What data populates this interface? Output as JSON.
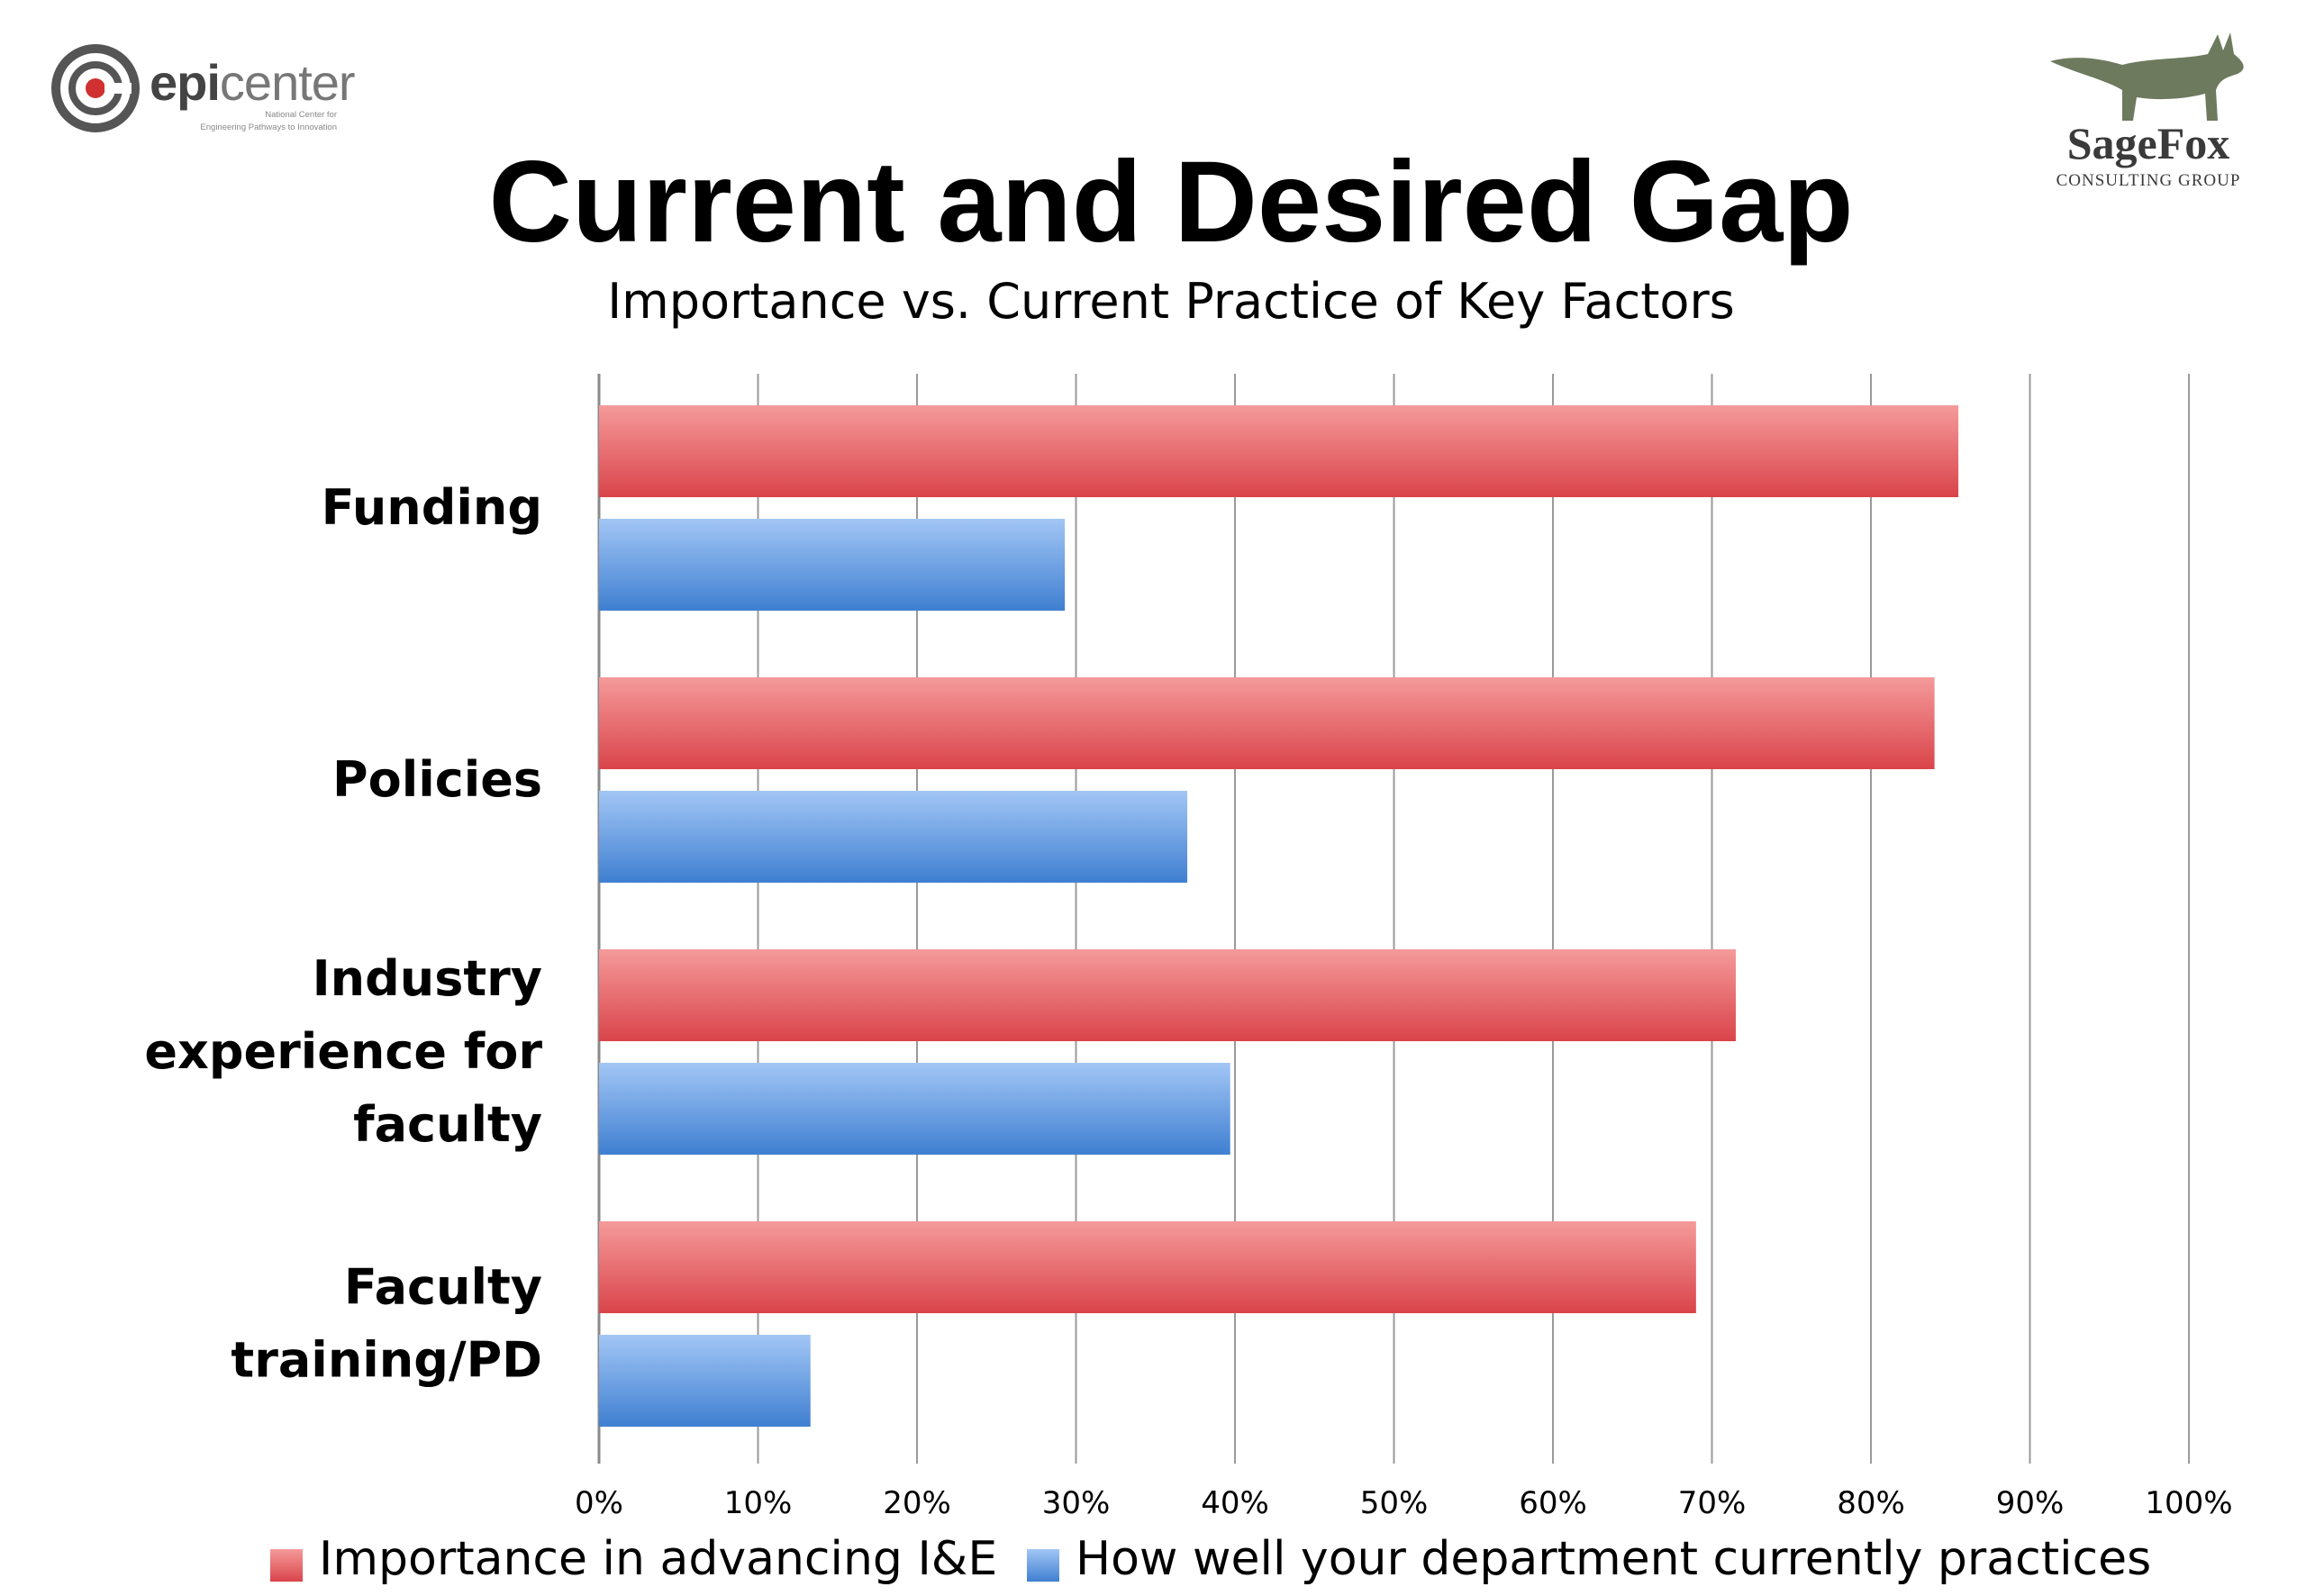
{
  "logos": {
    "left": {
      "brand_bold": "epi",
      "brand_thin": "center",
      "tagline_1": "National Center for",
      "tagline_2": "Engineering Pathways to Innovation",
      "icon": "epicenter-target-icon"
    },
    "right": {
      "name": "SageFox",
      "sub": "CONSULTING GROUP",
      "icon": "fox-icon"
    }
  },
  "title": "Current and Desired Gap",
  "subtitle": "Importance vs. Current Practice of Key Factors",
  "chart_data": {
    "type": "bar",
    "orientation": "horizontal",
    "categories": [
      "Funding",
      "Policies",
      "Industry experience for faculty",
      "Faculty training/PD"
    ],
    "category_lines": [
      [
        "Funding"
      ],
      [
        "Policies"
      ],
      [
        "Industry",
        "experience for",
        "faculty"
      ],
      [
        "Faculty",
        "training/PD"
      ]
    ],
    "series": [
      {
        "name": "Importance in advancing I&E",
        "values": [
          85.5,
          84,
          71.5,
          69
        ],
        "color": "#d9444a",
        "color_light": "#f59a9a"
      },
      {
        "name": "How well your department currently practices",
        "values": [
          29.3,
          37,
          39.7,
          13.3
        ],
        "color": "#3f7fd1",
        "color_light": "#a2c6f5"
      }
    ],
    "xlim": [
      0,
      100
    ],
    "xticks": [
      "0%",
      "10%",
      "20%",
      "30%",
      "40%",
      "50%",
      "60%",
      "70%",
      "80%",
      "90%",
      "100%"
    ],
    "grid": true,
    "legend_position": "bottom"
  }
}
